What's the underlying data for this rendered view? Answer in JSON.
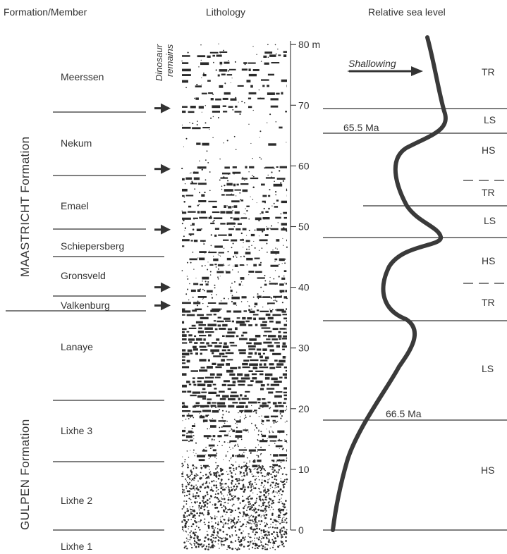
{
  "headers": {
    "formation_member": "Formation/Member",
    "dinosaur_line1": "Dinosaur",
    "dinosaur_line2": "remains",
    "lithology": "Lithology",
    "sea_level": "Relative sea level"
  },
  "formations": {
    "maastricht": "MAASTRICHT Formation",
    "gulpen": "GULPEN Formation"
  },
  "members": [
    "Meerssen",
    "Nekum",
    "Emael",
    "Schiepersberg",
    "Gronsveld",
    "Valkenburg",
    "Lanaye",
    "Lixhe 3",
    "Lixhe 2",
    "Lixhe 1"
  ],
  "scale": {
    "unit": "m",
    "ticks": [
      "0",
      "10",
      "20",
      "30",
      "40",
      "50",
      "60",
      "70",
      "80 m"
    ]
  },
  "sequences": [
    "TR",
    "LS",
    "HS",
    "TR",
    "LS",
    "HS",
    "TR",
    "LS",
    "HS"
  ],
  "ages": {
    "upper": "65.5 Ma",
    "lower": "66.5 Ma"
  },
  "shallowing_label": "Shallowing",
  "dinosaur_remains_heights_m": [
    69.5,
    59.5,
    49.5,
    40,
    37
  ]
}
